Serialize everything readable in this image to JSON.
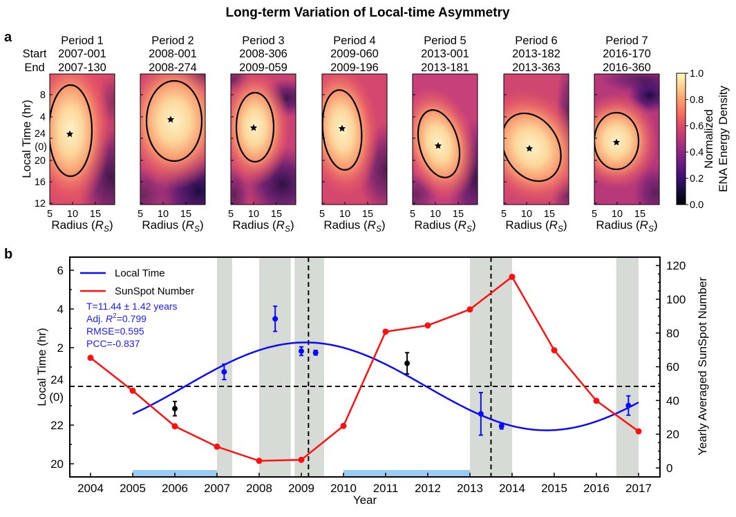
{
  "title": "Long-term Variation of Local-time Asymmetry",
  "panel_labels": {
    "a": "a",
    "b": "b"
  },
  "chart_data": [
    {
      "type": "heatmap",
      "row_labels": {
        "start": "Start",
        "end": "End"
      },
      "periods": [
        {
          "name": "Period 1",
          "start": "2007-001",
          "end": "2007-130"
        },
        {
          "name": "Period 2",
          "start": "2008-001",
          "end": "2008-274"
        },
        {
          "name": "Period 3",
          "start": "2008-306",
          "end": "2009-059"
        },
        {
          "name": "Period 4",
          "start": "2009-060",
          "end": "2009-196"
        },
        {
          "name": "Period 5",
          "start": "2013-001",
          "end": "2013-181"
        },
        {
          "name": "Period 6",
          "start": "2013-182",
          "end": "2013-363"
        },
        {
          "name": "Period 7",
          "start": "2016-170",
          "end": "2016-360"
        }
      ],
      "xlabel": {
        "text": "Radius (",
        "symbol": "R",
        "sub": "S",
        "close": ")"
      },
      "xticks": [
        "5",
        "10",
        "15"
      ],
      "ylabel": "Local Time (hr)",
      "yticks": [
        "12",
        "16",
        "20",
        "24",
        "4",
        "8"
      ],
      "ytick_midnight_alt": "(0)",
      "colormap": "magma",
      "colorbar": {
        "label_line1": "Normalized",
        "label_line2": "ENA Energy Density",
        "ticks": [
          "0.0",
          "0.2",
          "0.4",
          "0.6",
          "0.8",
          "1.0"
        ],
        "range": [
          0,
          1
        ]
      },
      "contour_marker": "star"
    },
    {
      "type": "line",
      "xlabel": "Year",
      "ylabel_left": "Local Time (hr)",
      "ylabel_right": "Yearly Averaged SunSpot Number",
      "xticks": [
        2004,
        2005,
        2006,
        2007,
        2008,
        2009,
        2010,
        2011,
        2012,
        2013,
        2014,
        2015,
        2016,
        2017
      ],
      "yticks_left": [
        "20",
        "22",
        "24",
        "2",
        "4",
        "6"
      ],
      "ytick_left_midnight_alt": "(0)",
      "yticks_right": [
        "0",
        "20",
        "40",
        "60",
        "80",
        "100",
        "120"
      ],
      "ylim_right": [
        0,
        120
      ],
      "legend": {
        "position": "top-left",
        "items": [
          {
            "label": "Local Time",
            "color": "#0a0aff"
          },
          {
            "label": "SunSpot Number",
            "color": "#ff1010"
          }
        ]
      },
      "annotation": {
        "period": "T=11.44 ± 1.42 years",
        "r2_prefix": "Adj. ",
        "r2_symbol": "R",
        "r2_sup": "2",
        "r2_value": "=0.799",
        "rmse": "RMSE=0.595",
        "pcc": "PCC=-0.837",
        "color": "#1a1aff"
      },
      "sunspot_series": {
        "name": "SunSpot Number",
        "color": "#ff1010",
        "x": [
          2004,
          2005,
          2006,
          2007,
          2008,
          2009,
          2010,
          2011,
          2012,
          2013,
          2014,
          2015,
          2016,
          2017
        ],
        "y": [
          65.3,
          45.8,
          24.7,
          12.6,
          4.2,
          4.8,
          24.9,
          80.8,
          84.5,
          94.0,
          113.3,
          69.8,
          39.8,
          21.7
        ]
      },
      "local_time_fit": {
        "name": "Local Time",
        "color": "#0a0aff",
        "period_years": 11.44,
        "amplitude_hr": 2.27,
        "peak_year": 2009.1,
        "mean_local_time": 24.0,
        "x_range": [
          2005,
          2017
        ]
      },
      "local_time_points": [
        {
          "x": 2006.0,
          "y": 22.85,
          "err": 0.37,
          "color": "#000000"
        },
        {
          "x": 2007.17,
          "y": 0.75,
          "err": 0.4,
          "color": "#0a0aff"
        },
        {
          "x": 2008.38,
          "y": 3.49,
          "err": 0.65,
          "color": "#0a0aff"
        },
        {
          "x": 2009.0,
          "y": 1.82,
          "err": 0.22,
          "color": "#0a0aff"
        },
        {
          "x": 2009.34,
          "y": 1.74,
          "err": 0.12,
          "color": "#0a0aff"
        },
        {
          "x": 2011.51,
          "y": 1.19,
          "err": 0.55,
          "color": "#000000"
        },
        {
          "x": 2013.26,
          "y": 22.58,
          "err": 1.1,
          "color": "#0a0aff"
        },
        {
          "x": 2013.75,
          "y": 21.95,
          "err": 0.15,
          "color": "#0a0aff"
        },
        {
          "x": 2016.76,
          "y": 23.01,
          "err": 0.5,
          "color": "#0a0aff"
        }
      ],
      "shaded_periods": [
        [
          2007.0,
          2007.36
        ],
        [
          2008.0,
          2008.75
        ],
        [
          2008.84,
          2009.54
        ],
        [
          2013.0,
          2014.0
        ],
        [
          2016.47,
          2017.0
        ]
      ],
      "shade_color": "#d7dbd6",
      "vertical_dashed_lines": [
        2009.17,
        2013.5
      ],
      "horizontal_dashed_line": 24,
      "highlight_ranges": [
        [
          2005,
          2007
        ],
        [
          2010,
          2013
        ]
      ],
      "highlight_color": "#99ccf5"
    }
  ]
}
